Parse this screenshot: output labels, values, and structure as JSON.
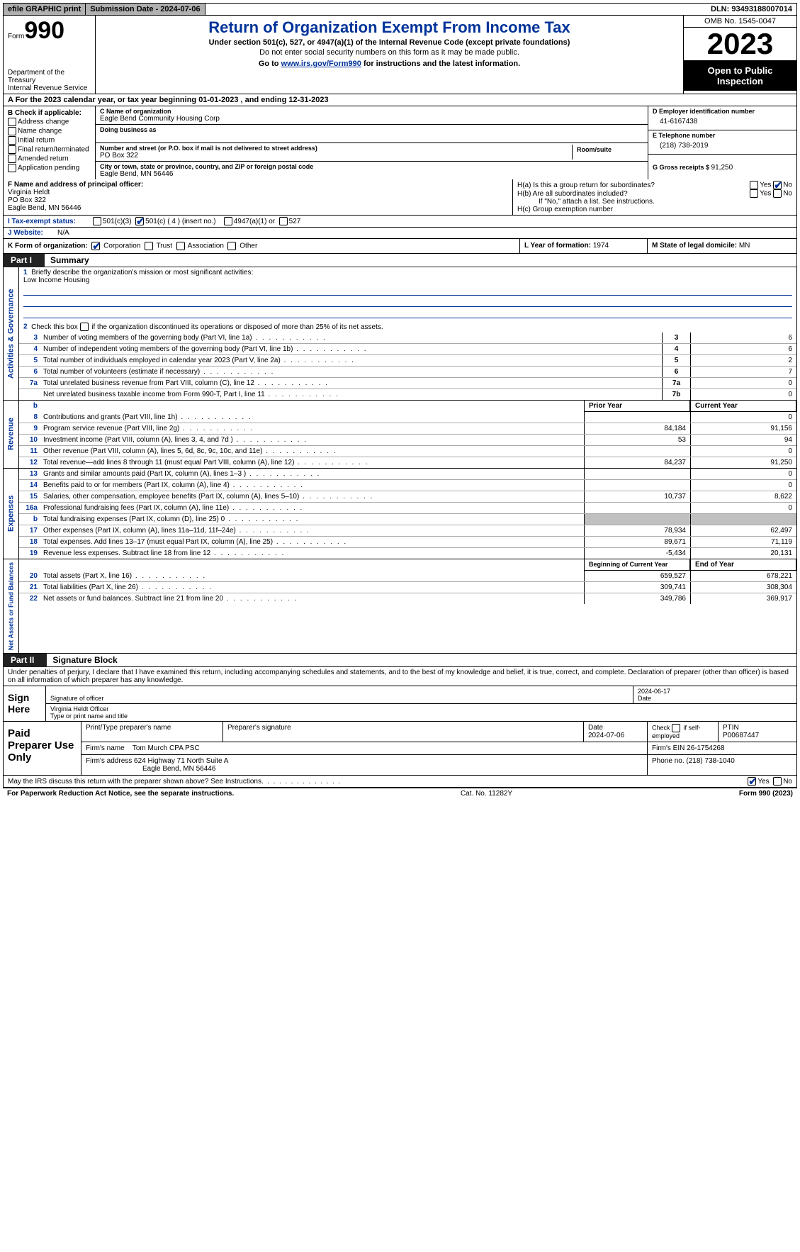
{
  "topbar": {
    "efile": "efile GRAPHIC print",
    "sub": "Submission Date - 2024-07-06",
    "dln": "DLN: 93493188007014"
  },
  "hdr": {
    "formword": "Form",
    "formno": "990",
    "dept": "Department of the Treasury\nInternal Revenue Service",
    "title": "Return of Organization Exempt From Income Tax",
    "sub": "Under section 501(c), 527, or 4947(a)(1) of the Internal Revenue Code (except private foundations)",
    "sub2": "Do not enter social security numbers on this form as it may be made public.",
    "go_pre": "Go to ",
    "go_link": "www.irs.gov/Form990",
    "go_post": " for instructions and the latest information.",
    "omb": "OMB No. 1545-0047",
    "year": "2023",
    "open": "Open to Public Inspection"
  },
  "rowA": "A  For the 2023 calendar year, or tax year beginning 01-01-2023    , and ending 12-31-2023",
  "colB": {
    "lab": "B Check if applicable:",
    "opts": [
      "Address change",
      "Name change",
      "Initial return",
      "Final return/terminated",
      "Amended return",
      "Application pending"
    ]
  },
  "colC": {
    "name_lab": "C Name of organization",
    "name": "Eagle Bend Community Housing Corp",
    "dba_lab": "Doing business as",
    "addr_lab": "Number and street (or P.O. box if mail is not delivered to street address)",
    "addr": "PO Box 322",
    "room_lab": "Room/suite",
    "city_lab": "City or town, state or province, country, and ZIP or foreign postal code",
    "city": "Eagle Bend, MN  56446"
  },
  "colD": {
    "d_lab": "D Employer identification number",
    "d_val": "41-6167438",
    "e_lab": "E Telephone number",
    "e_val": "(218) 738-2019",
    "g_lab": "G Gross receipts $ ",
    "g_val": "91,250"
  },
  "rowF": {
    "f_lab": "F  Name and address of principal officer:",
    "f_name": "Virginia Heldt",
    "f_addr1": "PO Box 322",
    "f_addr2": "Eagle Bend, MN  56446",
    "ha": "H(a)  Is this a group return for subordinates?",
    "hb": "H(b)  Are all subordinates included?",
    "hnote": "If \"No,\" attach a list. See instructions.",
    "hc": "H(c)  Group exemption number",
    "yes": "Yes",
    "no": "No"
  },
  "rowI": {
    "lab": "I   Tax-exempt status:",
    "o1": "501(c)(3)",
    "o2": "501(c) ( 4 ) (insert no.)",
    "o3": "4947(a)(1) or",
    "o4": "527"
  },
  "rowJ": {
    "lab": "J   Website:",
    "val": "N/A"
  },
  "rowK": {
    "lab": "K Form of organization:",
    "corp": "Corporation",
    "trust": "Trust",
    "assoc": "Association",
    "other": "Other",
    "l_lab": "L Year of formation: ",
    "l_val": "1974",
    "m_lab": "M State of legal domicile: ",
    "m_val": "MN"
  },
  "part1": {
    "tag": "Part I",
    "title": "Summary"
  },
  "s1": {
    "q1": "Briefly describe the organization's mission or most significant activities:",
    "q1v": "Low Income Housing",
    "q2": "Check this box      if the organization discontinued its operations or disposed of more than 25% of its net assets.",
    "rows": [
      {
        "n": "3",
        "d": "Number of voting members of the governing body (Part VI, line 1a)",
        "nc": "3",
        "v": "6"
      },
      {
        "n": "4",
        "d": "Number of independent voting members of the governing body (Part VI, line 1b)",
        "nc": "4",
        "v": "6"
      },
      {
        "n": "5",
        "d": "Total number of individuals employed in calendar year 2023 (Part V, line 2a)",
        "nc": "5",
        "v": "2"
      },
      {
        "n": "6",
        "d": "Total number of volunteers (estimate if necessary)",
        "nc": "6",
        "v": "7"
      },
      {
        "n": "7a",
        "d": "Total unrelated business revenue from Part VIII, column (C), line 12",
        "nc": "7a",
        "v": "0"
      },
      {
        "n": "",
        "d": "Net unrelated business taxable income from Form 990-T, Part I, line 11",
        "nc": "7b",
        "v": "0"
      }
    ],
    "side": "Activities & Governance"
  },
  "rev": {
    "side": "Revenue",
    "hdr_b": "b",
    "hdr_prior": "Prior Year",
    "hdr_curr": "Current Year",
    "rows": [
      {
        "n": "8",
        "d": "Contributions and grants (Part VIII, line 1h)",
        "p": "",
        "c": "0"
      },
      {
        "n": "9",
        "d": "Program service revenue (Part VIII, line 2g)",
        "p": "84,184",
        "c": "91,156"
      },
      {
        "n": "10",
        "d": "Investment income (Part VIII, column (A), lines 3, 4, and 7d )",
        "p": "53",
        "c": "94"
      },
      {
        "n": "11",
        "d": "Other revenue (Part VIII, column (A), lines 5, 6d, 8c, 9c, 10c, and 11e)",
        "p": "",
        "c": "0"
      },
      {
        "n": "12",
        "d": "Total revenue—add lines 8 through 11 (must equal Part VIII, column (A), line 12)",
        "p": "84,237",
        "c": "91,250"
      }
    ]
  },
  "exp": {
    "side": "Expenses",
    "rows": [
      {
        "n": "13",
        "d": "Grants and similar amounts paid (Part IX, column (A), lines 1–3 )",
        "p": "",
        "c": "0"
      },
      {
        "n": "14",
        "d": "Benefits paid to or for members (Part IX, column (A), line 4)",
        "p": "",
        "c": "0"
      },
      {
        "n": "15",
        "d": "Salaries, other compensation, employee benefits (Part IX, column (A), lines 5–10)",
        "p": "10,737",
        "c": "8,622"
      },
      {
        "n": "16a",
        "d": "Professional fundraising fees (Part IX, column (A), line 11e)",
        "p": "",
        "c": "0"
      },
      {
        "n": "b",
        "d": "Total fundraising expenses (Part IX, column (D), line 25) 0",
        "p": "GREY",
        "c": "GREY"
      },
      {
        "n": "17",
        "d": "Other expenses (Part IX, column (A), lines 11a–11d, 11f–24e)",
        "p": "78,934",
        "c": "62,497"
      },
      {
        "n": "18",
        "d": "Total expenses. Add lines 13–17 (must equal Part IX, column (A), line 25)",
        "p": "89,671",
        "c": "71,119"
      },
      {
        "n": "19",
        "d": "Revenue less expenses. Subtract line 18 from line 12",
        "p": "-5,434",
        "c": "20,131"
      }
    ]
  },
  "net": {
    "side": "Net Assets or Fund Balances",
    "hdr_b": "Beginning of Current Year",
    "hdr_e": "End of Year",
    "rows": [
      {
        "n": "20",
        "d": "Total assets (Part X, line 16)",
        "p": "659,527",
        "c": "678,221"
      },
      {
        "n": "21",
        "d": "Total liabilities (Part X, line 26)",
        "p": "309,741",
        "c": "308,304"
      },
      {
        "n": "22",
        "d": "Net assets or fund balances. Subtract line 21 from line 20",
        "p": "349,786",
        "c": "369,917"
      }
    ]
  },
  "part2": {
    "tag": "Part II",
    "title": "Signature Block"
  },
  "penalty": "Under penalties of perjury, I declare that I have examined this return, including accompanying schedules and statements, and to the best of my knowledge and belief, it is true, correct, and complete. Declaration of preparer (other than officer) is based on all information of which preparer has any knowledge.",
  "sign": {
    "left": "Sign Here",
    "sig_lab": "Signature of officer",
    "date": "2024-06-17",
    "name": "Virginia Heldt Officer",
    "name_lab": "Type or print name and title"
  },
  "paid": {
    "left": "Paid Preparer Use Only",
    "h1": "Print/Type preparer's name",
    "h2": "Preparer's signature",
    "h3": "Date",
    "h3v": "2024-07-06",
    "h4a": "Check",
    "h4b": "if self-employed",
    "h5": "PTIN",
    "h5v": "P00687447",
    "firm_lab": "Firm's name",
    "firm": "Tom Murch CPA PSC",
    "ein_lab": "Firm's EIN",
    "ein": "26-1754268",
    "addr_lab": "Firm's address",
    "addr1": "624 Highway 71 North Suite A",
    "addr2": "Eagle Bend, MN  56446",
    "phone_lab": "Phone no.",
    "phone": "(218) 738-1040"
  },
  "discuss": {
    "q": "May the IRS discuss this return with the preparer shown above? See Instructions.",
    "yes": "Yes",
    "no": "No"
  },
  "footer": {
    "l": "For Paperwork Reduction Act Notice, see the separate instructions.",
    "m": "Cat. No. 11282Y",
    "r": "Form 990 (2023)"
  }
}
